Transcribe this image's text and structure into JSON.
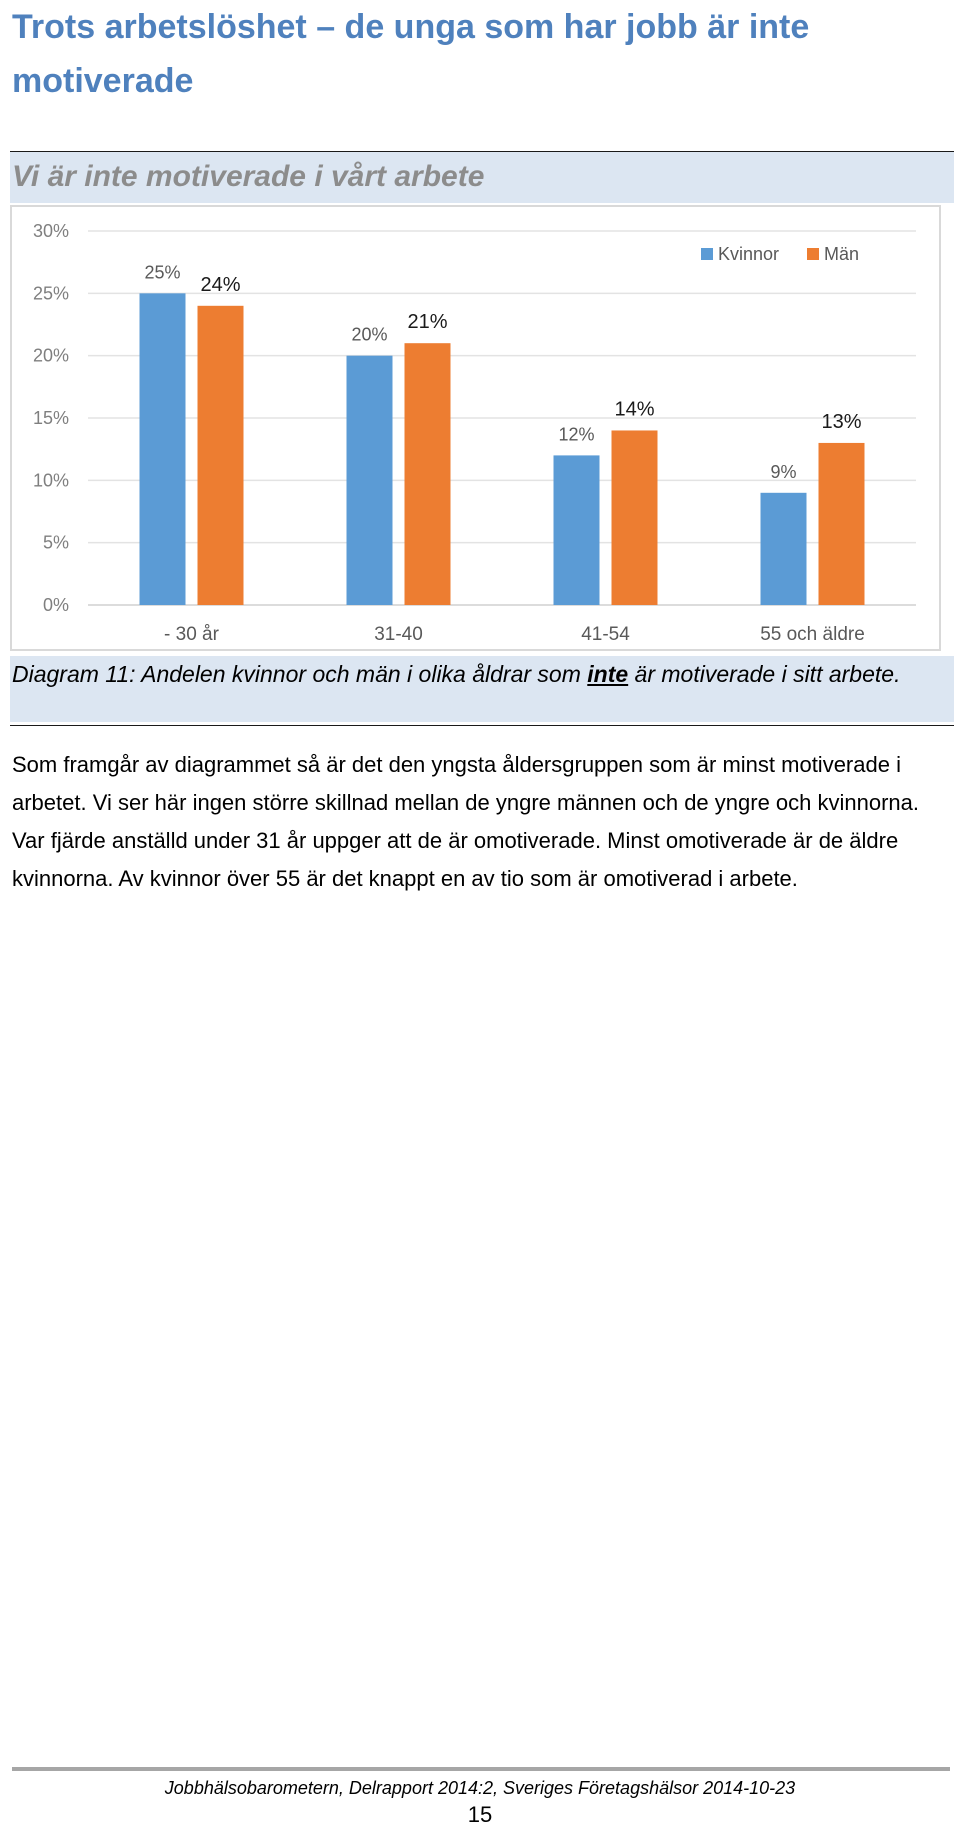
{
  "page": {
    "title": "Trots arbetslöshet – de unga som har jobb är inte motiverade"
  },
  "chart_data": {
    "type": "bar",
    "title": "Vi är inte motiverade i vårt arbete",
    "xlabel": "",
    "ylabel": "",
    "categories": [
      "- 30 år",
      "31-40",
      "41-54",
      "55 och äldre"
    ],
    "series": [
      {
        "name": "Kvinnor",
        "values": [
          25,
          20,
          12,
          9
        ],
        "labels": [
          "25%",
          "20%",
          "12%",
          "9%"
        ],
        "color": "#5b9bd5"
      },
      {
        "name": "Män",
        "values": [
          24,
          21,
          14,
          13
        ],
        "labels": [
          "24%",
          "21%",
          "14%",
          "13%"
        ],
        "color": "#ed7d31"
      }
    ],
    "ylim": [
      0,
      30
    ],
    "yticks": [
      0,
      5,
      10,
      15,
      20,
      25,
      30
    ],
    "ytick_labels": [
      "0%",
      "5%",
      "10%",
      "15%",
      "20%",
      "25%",
      "30%"
    ],
    "grid": true,
    "legend_position": "top-right"
  },
  "caption": {
    "before": "Diagram 11: Andelen kvinnor och män i olika åldrar som ",
    "emphasis": "inte",
    "after": " är motiverade i sitt arbete."
  },
  "body_text": "Som framgår av diagrammet så är det den yngsta åldersgruppen som är minst motiverade i arbetet. Vi ser här ingen större skillnad mellan de yngre männen och de yngre och kvinnorna. Var fjärde anställd under 31 år uppger att de är omotiverade. Minst omotiverade är de äldre kvinnorna. Av kvinnor över 55 är det knappt en av tio som är omotiverad i arbete.",
  "footer": {
    "text": "Jobbhälsobarometern, Delrapport 2014:2, Sveriges Företagshälsor 2014-10-23",
    "page_number": "15"
  }
}
